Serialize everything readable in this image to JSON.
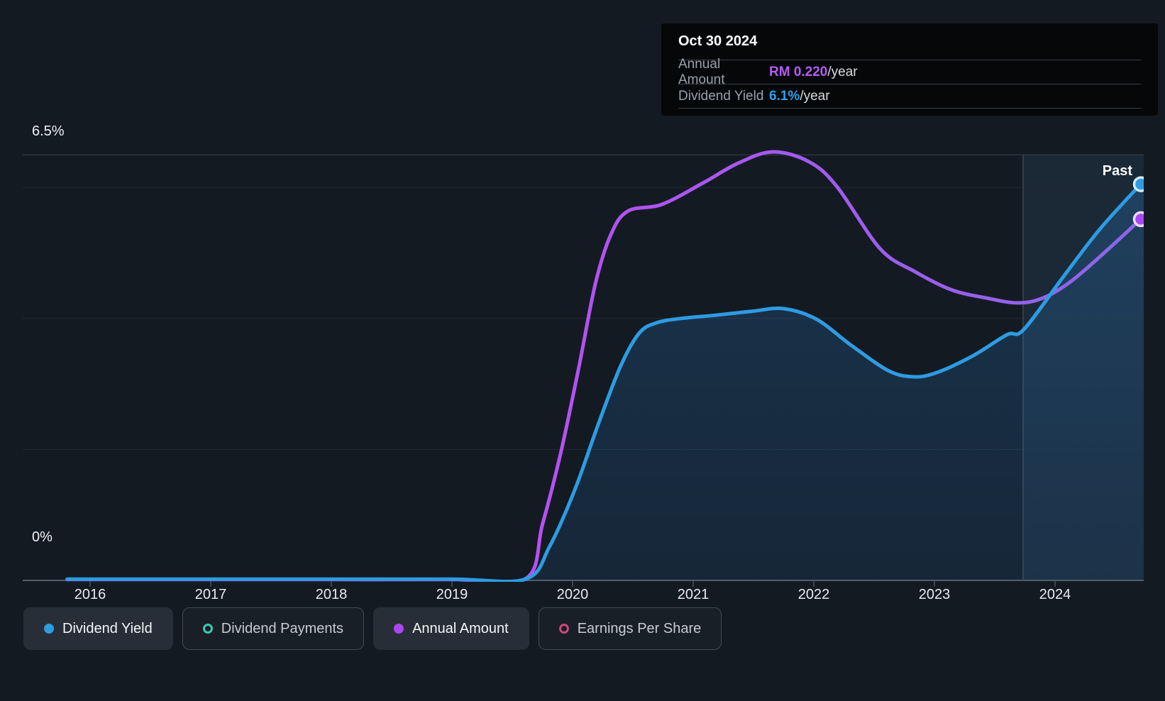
{
  "tooltip": {
    "date": "Oct 30 2024",
    "rows": [
      {
        "label": "Annual Amount",
        "value": "RM 0.220",
        "suffix": "/year",
        "value_color": "#b45cf5"
      },
      {
        "label": "Dividend Yield",
        "value": "6.1%",
        "suffix": "/year",
        "value_color": "#2da1f0"
      }
    ]
  },
  "axis": {
    "y_top_label": "6.5%",
    "y_bottom_label": "0%",
    "x_labels": [
      "2016",
      "2017",
      "2018",
      "2019",
      "2020",
      "2021",
      "2022",
      "2023",
      "2024"
    ],
    "past_label": "Past"
  },
  "legend": [
    {
      "label": "Dividend Yield",
      "marker": "filled",
      "color": "#2d9ce2",
      "active": true
    },
    {
      "label": "Dividend Payments",
      "marker": "ring",
      "color": "#3fc8b4",
      "active": false
    },
    {
      "label": "Annual Amount",
      "marker": "filled",
      "color": "#ab47f0",
      "active": true
    },
    {
      "label": "Earnings Per Share",
      "marker": "ring",
      "color": "#cf4779",
      "active": false
    }
  ],
  "chart_data": {
    "type": "line",
    "title": "Dividend yield and payments history",
    "x_axis": {
      "min": 2015.8,
      "max": 2024.74,
      "ticks": [
        2016,
        2017,
        2018,
        2019,
        2020,
        2021,
        2022,
        2023,
        2024
      ]
    },
    "y_axis": {
      "min": 0,
      "max": 6.5,
      "unit": "%",
      "gridlines_pct": [
        6.5,
        6,
        4,
        2,
        0
      ],
      "labeled": [
        "6.5%",
        "0%"
      ]
    },
    "past_divider_year": 2023.735,
    "past_region_label": "Past",
    "latest": {
      "date": "Oct 30 2024",
      "annual_amount_rm": 0.22,
      "dividend_yield_pct": 6.1
    },
    "series": [
      {
        "name": "Dividend Yield",
        "unit": "%",
        "color": "#2d9ce2",
        "endpoint_stroke": "#cfe9fd",
        "area_color_top": "rgba(45,140,220,0.26)",
        "area_color_bottom": "rgba(35,110,180,0.15)",
        "points": [
          [
            2015.81,
            0.02
          ],
          [
            2017.0,
            0.02
          ],
          [
            2018.0,
            0.02
          ],
          [
            2019.0,
            0.02
          ],
          [
            2019.61,
            0.02
          ],
          [
            2019.81,
            0.52
          ],
          [
            2020.02,
            1.39
          ],
          [
            2020.22,
            2.42
          ],
          [
            2020.4,
            3.28
          ],
          [
            2020.55,
            3.77
          ],
          [
            2020.69,
            3.93
          ],
          [
            2020.9,
            4.0
          ],
          [
            2021.19,
            4.05
          ],
          [
            2021.49,
            4.11
          ],
          [
            2021.75,
            4.15
          ],
          [
            2022.02,
            3.99
          ],
          [
            2022.31,
            3.59
          ],
          [
            2022.61,
            3.21
          ],
          [
            2022.81,
            3.11
          ],
          [
            2023.0,
            3.16
          ],
          [
            2023.31,
            3.42
          ],
          [
            2023.6,
            3.75
          ],
          [
            2023.74,
            3.83
          ],
          [
            2024.07,
            4.64
          ],
          [
            2024.37,
            5.36
          ],
          [
            2024.71,
            6.05
          ]
        ]
      },
      {
        "name": "Annual Amount",
        "unit": "RM",
        "color": "#b750f2",
        "color_end": "#8a67e8",
        "endpoint_fill": "#ab47f0",
        "endpoint_stroke": "#eadcfc",
        "points": [
          [
            2015.81,
            0.0005
          ],
          [
            2017.0,
            0.0005
          ],
          [
            2018.0,
            0.0005
          ],
          [
            2019.0,
            0.0005
          ],
          [
            2019.61,
            0.001
          ],
          [
            2019.75,
            0.034
          ],
          [
            2019.9,
            0.077
          ],
          [
            2020.05,
            0.129
          ],
          [
            2020.19,
            0.181
          ],
          [
            2020.32,
            0.211
          ],
          [
            2020.46,
            0.225
          ],
          [
            2020.74,
            0.229
          ],
          [
            2021.08,
            0.242
          ],
          [
            2021.37,
            0.254
          ],
          [
            2021.66,
            0.261
          ],
          [
            2021.96,
            0.255
          ],
          [
            2022.19,
            0.24
          ],
          [
            2022.55,
            0.202
          ],
          [
            2022.84,
            0.188
          ],
          [
            2023.14,
            0.177
          ],
          [
            2023.43,
            0.172
          ],
          [
            2023.69,
            0.169
          ],
          [
            2023.9,
            0.172
          ],
          [
            2024.13,
            0.182
          ],
          [
            2024.43,
            0.201
          ],
          [
            2024.71,
            0.22
          ]
        ]
      }
    ],
    "colors": {
      "background": "#141a22",
      "gridline_minor": "#242b34",
      "gridline_top": "#3a424c",
      "axis_line": "#545c66",
      "divider": "#3a4854",
      "past_overlay": "rgba(96,164,232,0.10)"
    }
  }
}
